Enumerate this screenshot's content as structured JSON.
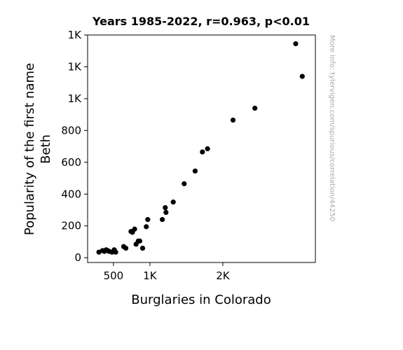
{
  "chart_data": {
    "type": "scatter",
    "title": "Years 1985-2022, r=0.963, p<0.01",
    "xlabel": "Burglaries in Colorado",
    "ylabel_lines": [
      "Popularity of the first name",
      "Beth"
    ],
    "watermark": "More info: tylervigen.com/spurious/correlation/44250",
    "xlim": [
      145,
      3270
    ],
    "ylim": [
      -30,
      1400
    ],
    "x_ticks": [
      {
        "value": 500,
        "label": "500"
      },
      {
        "value": 1000,
        "label": "1K"
      },
      {
        "value": 2000,
        "label": "2K"
      }
    ],
    "y_ticks": [
      {
        "value": 0,
        "label": "0"
      },
      {
        "value": 200,
        "label": "200"
      },
      {
        "value": 400,
        "label": "400"
      },
      {
        "value": 600,
        "label": "600"
      },
      {
        "value": 800,
        "label": "800"
      },
      {
        "value": 1000,
        "label": "1K"
      },
      {
        "value": 1200,
        "label": "1K"
      },
      {
        "value": 1400,
        "label": "1K"
      }
    ],
    "marker_color": "#000000",
    "grid": false,
    "points": [
      {
        "x": 300,
        "y": 35
      },
      {
        "x": 350,
        "y": 45
      },
      {
        "x": 375,
        "y": 40
      },
      {
        "x": 400,
        "y": 50
      },
      {
        "x": 420,
        "y": 45
      },
      {
        "x": 440,
        "y": 40
      },
      {
        "x": 480,
        "y": 35
      },
      {
        "x": 510,
        "y": 50
      },
      {
        "x": 520,
        "y": 40
      },
      {
        "x": 530,
        "y": 35
      },
      {
        "x": 640,
        "y": 70
      },
      {
        "x": 670,
        "y": 60
      },
      {
        "x": 740,
        "y": 165
      },
      {
        "x": 760,
        "y": 160
      },
      {
        "x": 790,
        "y": 180
      },
      {
        "x": 810,
        "y": 85
      },
      {
        "x": 840,
        "y": 105
      },
      {
        "x": 860,
        "y": 105
      },
      {
        "x": 900,
        "y": 60
      },
      {
        "x": 950,
        "y": 195
      },
      {
        "x": 970,
        "y": 240
      },
      {
        "x": 1170,
        "y": 240
      },
      {
        "x": 1210,
        "y": 315
      },
      {
        "x": 1220,
        "y": 285
      },
      {
        "x": 1320,
        "y": 350
      },
      {
        "x": 1470,
        "y": 465
      },
      {
        "x": 1620,
        "y": 545
      },
      {
        "x": 1720,
        "y": 665
      },
      {
        "x": 1790,
        "y": 685
      },
      {
        "x": 2140,
        "y": 865
      },
      {
        "x": 2440,
        "y": 940
      },
      {
        "x": 3000,
        "y": 1345
      },
      {
        "x": 3090,
        "y": 1140
      }
    ]
  }
}
